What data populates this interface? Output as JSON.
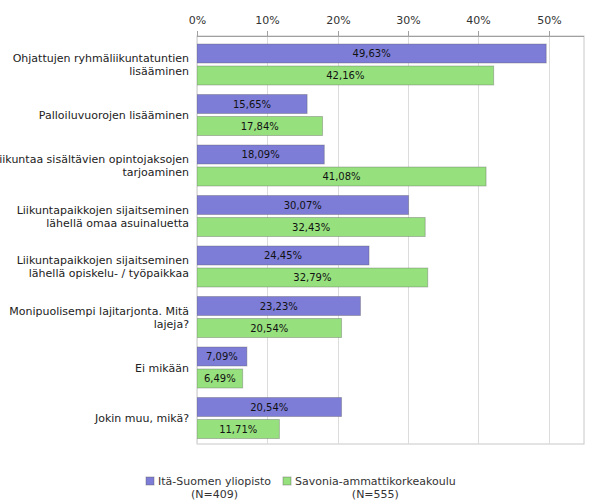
{
  "chart_data": {
    "type": "bar",
    "orientation": "horizontal",
    "categories": [
      "Ohjattujen ryhmäliikuntatuntien\nlisääminen",
      "Palloiluvuorojen lisääminen",
      "Liikuntaa sisältävien opintojaksojen\ntarjoaminen",
      "Liikuntapaikkojen sijaitseminen\nlähellä omaa asuinaluetta",
      "Liikuntapaikkojen sijaitseminen\nlähellä opiskelu- / työpaikkaa",
      "Monipuolisempi lajitarjonta. Mitä\nlajeja?",
      "Ei mikään",
      "Jokin muu, mikä?"
    ],
    "series": [
      {
        "name": "Itä-Suomen yliopisto\n(N=409)",
        "color": "#7d7dd8",
        "values": [
          49.63,
          15.65,
          18.09,
          30.07,
          24.45,
          23.23,
          7.09,
          20.54
        ],
        "value_labels": [
          "49,63%",
          "15,65%",
          "18,09%",
          "30,07%",
          "24,45%",
          "23,23%",
          "7,09%",
          "20,54%"
        ]
      },
      {
        "name": "Savonia-ammattikorkeakoulu\n(N=555)",
        "color": "#96e07e",
        "values": [
          42.16,
          17.84,
          41.08,
          32.43,
          32.79,
          20.54,
          6.49,
          11.71
        ],
        "value_labels": [
          "42,16%",
          "17,84%",
          "41,08%",
          "32,43%",
          "32,79%",
          "20,54%",
          "6,49%",
          "11,71%"
        ]
      }
    ],
    "xlim": [
      0,
      55
    ],
    "xticks": [
      {
        "value": 0,
        "label": "0%"
      },
      {
        "value": 10,
        "label": "10%"
      },
      {
        "value": 20,
        "label": "20%"
      },
      {
        "value": 30,
        "label": "30%"
      },
      {
        "value": 40,
        "label": "40%"
      },
      {
        "value": 50,
        "label": "50%"
      }
    ],
    "grid": true,
    "data_labels": true,
    "legend": "bottom"
  }
}
